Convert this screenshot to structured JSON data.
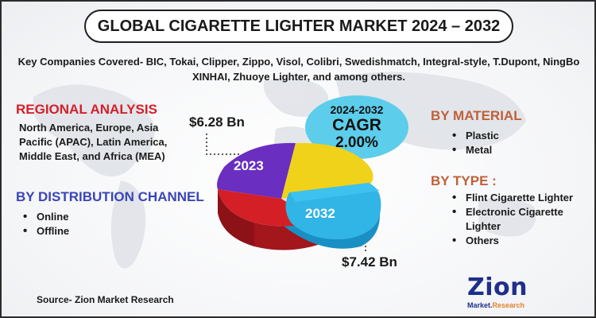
{
  "title": "GLOBAL CIGARETTE LIGHTER MARKET 2024 – 2032",
  "companies": "Key Companies Covered- BIC, Tokai, Clipper, Zippo, Visol, Colibri, Swedishmatch, Integral-style, T.Dupont, NingBo XINHAI, Zhuoye Lighter, and among others.",
  "regional": {
    "heading": "REGIONAL ANALYSIS",
    "text": "North America, Europe, Asia Pacific (APAC), Latin America, Middle East, and Africa (MEA)"
  },
  "distribution": {
    "heading": "BY DISTRIBUTION CHANNEL",
    "items": [
      "Online",
      "Offline"
    ]
  },
  "cagr": {
    "years": "2024-2032",
    "label": "CAGR",
    "value": "2.00%"
  },
  "market_values": {
    "start_year": "2023",
    "start_value": "$6.28 Bn",
    "end_year": "2032",
    "end_value": "$7.42 Bn"
  },
  "material": {
    "heading": "BY MATERIAL",
    "items": [
      "Plastic",
      "Metal"
    ]
  },
  "type": {
    "heading": "BY TYPE :",
    "items": [
      "Flint Cigarette Lighter",
      "Electronic Cigarette Lighter",
      "Others"
    ]
  },
  "source": "Source- Zion Market Research",
  "logo": {
    "word": "Zion",
    "sub_left": "Market.",
    "sub_right": "Research"
  },
  "colors": {
    "red_heading": "#d4202a",
    "blue_heading": "#3a46b7",
    "orange_heading": "#c0603a",
    "cagr_badge": "#5ccdea",
    "pie_purple": "#6a2ec0",
    "pie_yellow": "#f0d21a",
    "pie_red": "#d41f26",
    "pie_cyan": "#31b4e6"
  }
}
